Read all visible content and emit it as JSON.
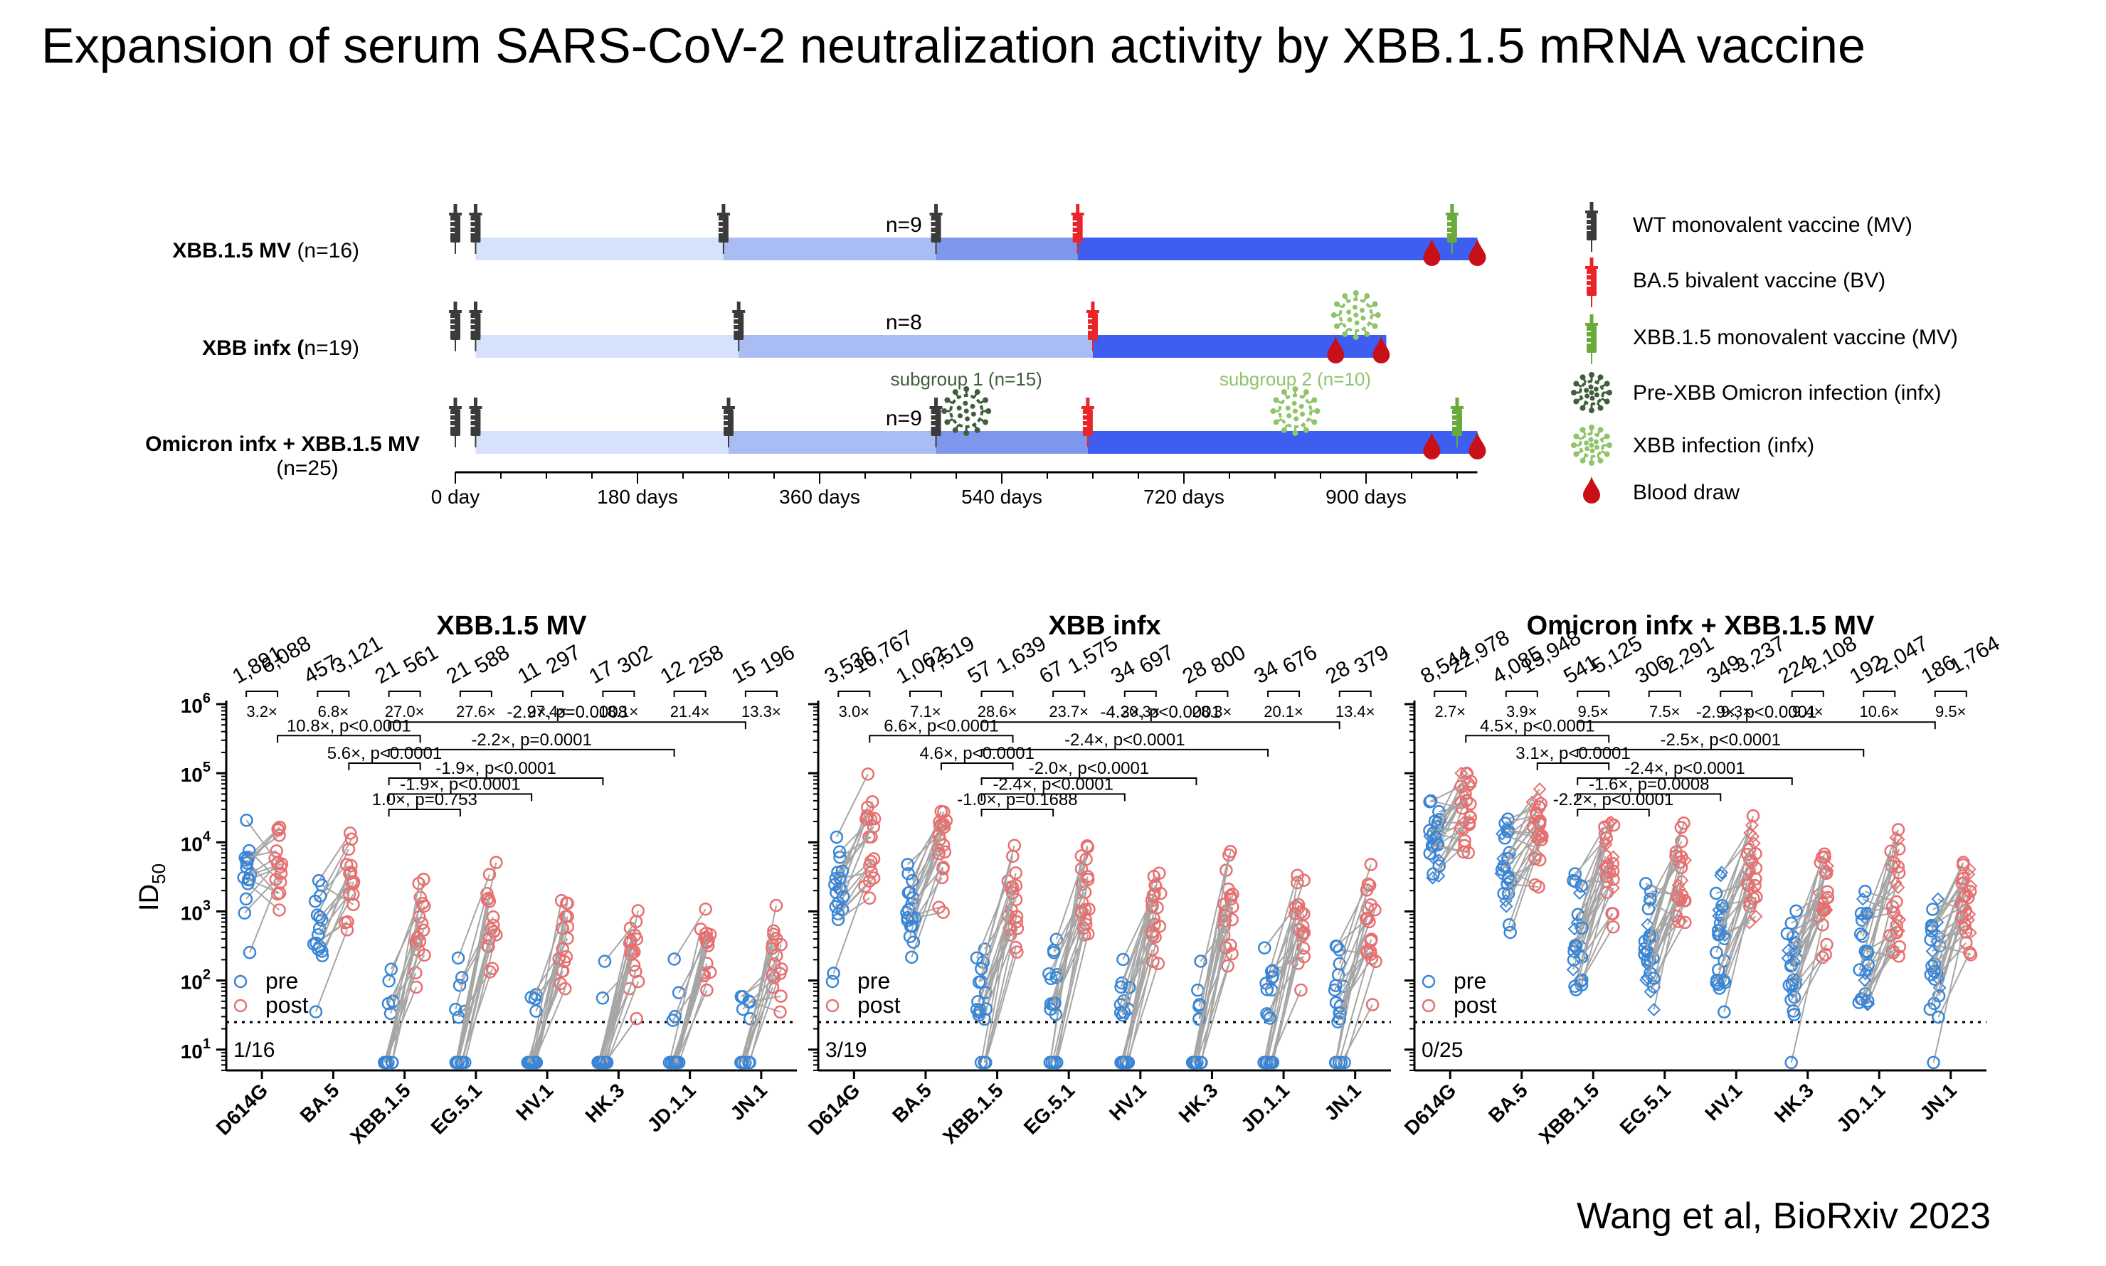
{
  "title": "Expansion of serum SARS-CoV-2 neutralization activity by XBB.1.5 mRNA vaccine",
  "citation": "Wang et al, BioRxiv 2023",
  "colors": {
    "pre": "#3a86d6",
    "post": "#e86f6f",
    "wt_vaccine": "#3b3b3b",
    "bv_vaccine": "#e8262a",
    "xbb_vaccine": "#6aaa3c",
    "pre_xbb_infx": "#3f5f3a",
    "xbb_infx": "#8fc46a",
    "blood": "#c8101a"
  },
  "timeline": {
    "axis_ticks": [
      "0 day",
      "180 days",
      "360 days",
      "540 days",
      "720 days",
      "900 days"
    ],
    "axis_days": [
      0,
      180,
      360,
      540,
      720,
      900
    ],
    "cohorts": [
      {
        "name": "XBB.1.5 MV",
        "n": "(n=16)",
        "vaccines": [
          {
            "day": 0,
            "type": "wt"
          },
          {
            "day": 20,
            "type": "wt"
          },
          {
            "day": 265,
            "type": "wt"
          },
          {
            "day": 475,
            "type": "wt"
          },
          {
            "day": 615,
            "type": "bv"
          },
          {
            "day": 985,
            "type": "xbb"
          }
        ],
        "n_label": "n=9",
        "n_label_day": 440,
        "blood_days": [
          965,
          1010
        ],
        "end_day": 1010
      },
      {
        "name": "XBB infx (",
        "n": "n=19)",
        "vaccines": [
          {
            "day": 0,
            "type": "wt"
          },
          {
            "day": 20,
            "type": "wt"
          },
          {
            "day": 280,
            "type": "wt"
          },
          {
            "day": 630,
            "type": "bv"
          }
        ],
        "n_label": "n=8",
        "n_label_day": 440,
        "infections": [
          {
            "day": 890,
            "type": "xbb"
          }
        ],
        "blood_days": [
          870,
          915
        ],
        "end_day": 920
      },
      {
        "name": "Omicron infx + XBB.1.5 MV",
        "n": "(n=25)",
        "vaccines": [
          {
            "day": 0,
            "type": "wt"
          },
          {
            "day": 20,
            "type": "wt"
          },
          {
            "day": 270,
            "type": "wt"
          },
          {
            "day": 475,
            "type": "wt"
          },
          {
            "day": 625,
            "type": "bv"
          },
          {
            "day": 990,
            "type": "xbb"
          }
        ],
        "n_label": "n=9",
        "n_label_day": 440,
        "infections": [
          {
            "day": 505,
            "type": "pre"
          },
          {
            "day": 830,
            "type": "xbb"
          }
        ],
        "subgroups": [
          {
            "label": "subgroup 1 (n=15)",
            "day": 505,
            "type": "pre"
          },
          {
            "label": "subgroup 2 (n=10)",
            "day": 830,
            "type": "xbb"
          }
        ],
        "blood_days": [
          965,
          1010
        ],
        "end_day": 1010
      }
    ],
    "legend": [
      {
        "icon": "wt",
        "label": "WT monovalent vaccine (MV)"
      },
      {
        "icon": "bv",
        "label": "BA.5 bivalent vaccine (BV)"
      },
      {
        "icon": "xbb",
        "label": "XBB.1.5 monovalent vaccine (MV)"
      },
      {
        "icon": "pre",
        "label": "Pre-XBB Omicron infection (infx)"
      },
      {
        "icon": "xbbinfx",
        "label": "XBB infection (infx)"
      },
      {
        "icon": "blood",
        "label": "Blood draw"
      }
    ]
  },
  "chart_data": [
    {
      "type": "scatter",
      "title": "XBB.1.5 MV",
      "ylabel": "ID50",
      "yscale": "log",
      "ylim": [
        5,
        1000000
      ],
      "yticks": [
        "10",
        "10",
        "10",
        "10",
        "10",
        "10"
      ],
      "ytick_exp": [
        "1",
        "2",
        "3",
        "4",
        "5",
        "6"
      ],
      "categories": [
        "D614G",
        "BA.5",
        "XBB.1.5",
        "EG.5.1",
        "HV.1",
        "HK.3",
        "JD.1.1",
        "JN.1"
      ],
      "series": [
        {
          "name": "pre"
        },
        {
          "name": "post"
        }
      ],
      "gmt_pre": [
        "1,891",
        "457",
        "21",
        "21",
        "11",
        "17",
        "12",
        "15"
      ],
      "gmt_post": [
        "6,088",
        "3,121",
        "561",
        "588",
        "297",
        "302",
        "258",
        "196"
      ],
      "pre_values": [
        1891,
        457,
        21,
        21,
        11,
        17,
        12,
        15
      ],
      "post_values": [
        6088,
        3121,
        561,
        588,
        297,
        302,
        258,
        196
      ],
      "fold": [
        "3.2×",
        "6.8×",
        "27.0×",
        "27.6×",
        "27.4×",
        "18.1×",
        "21.4×",
        "13.3×"
      ],
      "comparisons": [
        {
          "label": "-2.9×, p=0.0008",
          "from": 2,
          "to": 7,
          "y": 550000
        },
        {
          "label": "10.8×, p<0.0001",
          "from": 0,
          "to": 2,
          "y": 350000
        },
        {
          "label": "-2.2×, p=0.0001",
          "from": 2,
          "to": 6,
          "y": 220000
        },
        {
          "label": "5.6×, p<0.0001",
          "from": 1,
          "to": 2,
          "y": 140000
        },
        {
          "label": "-1.9×, p<0.0001",
          "from": 2,
          "to": 5,
          "y": 85000
        },
        {
          "label": "-1.9×, p<0.0001",
          "from": 2,
          "to": 4,
          "y": 50000
        },
        {
          "label": "1.0×, p=0.753",
          "from": 2,
          "to": 3,
          "y": 30000
        }
      ],
      "lod": 25,
      "fraction": "1/16",
      "legend": [
        "pre",
        "post"
      ]
    },
    {
      "type": "scatter",
      "title": "XBB infx",
      "yscale": "log",
      "ylim": [
        5,
        1000000
      ],
      "categories": [
        "D614G",
        "BA.5",
        "XBB.1.5",
        "EG.5.1",
        "HV.1",
        "HK.3",
        "JD.1.1",
        "JN.1"
      ],
      "series": [
        {
          "name": "pre"
        },
        {
          "name": "post"
        }
      ],
      "gmt_pre": [
        "3,536",
        "1,062",
        "57",
        "67",
        "34",
        "28",
        "34",
        "28"
      ],
      "gmt_post": [
        "10,767",
        "7,519",
        "1,639",
        "1,575",
        "697",
        "800",
        "676",
        "379"
      ],
      "pre_values": [
        3536,
        1062,
        57,
        67,
        34,
        28,
        34,
        28
      ],
      "post_values": [
        10767,
        7519,
        1639,
        1575,
        697,
        800,
        676,
        379
      ],
      "fold": [
        "3.0×",
        "7.1×",
        "28.6×",
        "23.7×",
        "20.3×",
        "28.3×",
        "20.1×",
        "13.4×"
      ],
      "comparisons": [
        {
          "label": "-4.3×, p<0.0001",
          "from": 2,
          "to": 7,
          "y": 550000
        },
        {
          "label": "6.6×, p<0.0001",
          "from": 0,
          "to": 2,
          "y": 350000
        },
        {
          "label": "-2.4×, p<0.0001",
          "from": 2,
          "to": 6,
          "y": 220000
        },
        {
          "label": "4.6×, p<0.0001",
          "from": 1,
          "to": 2,
          "y": 140000
        },
        {
          "label": "-2.0×, p<0.0001",
          "from": 2,
          "to": 5,
          "y": 85000
        },
        {
          "label": "-2.4×, p<0.0001",
          "from": 2,
          "to": 4,
          "y": 50000
        },
        {
          "label": "-1.0×, p=0.1688",
          "from": 2,
          "to": 3,
          "y": 30000
        }
      ],
      "lod": 25,
      "fraction": "3/19",
      "legend": [
        "pre",
        "post"
      ]
    },
    {
      "type": "scatter",
      "title": "Omicron infx + XBB.1.5 MV",
      "yscale": "log",
      "ylim": [
        5,
        1000000
      ],
      "categories": [
        "D614G",
        "BA.5",
        "XBB.1.5",
        "EG.5.1",
        "HV.1",
        "HK.3",
        "JD.1.1",
        "JN.1"
      ],
      "series": [
        {
          "name": "pre"
        },
        {
          "name": "post"
        }
      ],
      "gmt_pre": [
        "8,544",
        "4,085",
        "541",
        "306",
        "349",
        "224",
        "192",
        "186"
      ],
      "gmt_post": [
        "22,978",
        "15,948",
        "5,125",
        "2,291",
        "3,237",
        "2,108",
        "2,047",
        "1,764"
      ],
      "pre_values": [
        8544,
        4085,
        541,
        306,
        349,
        224,
        192,
        186
      ],
      "post_values": [
        22978,
        15948,
        5125,
        2291,
        3237,
        2108,
        2047,
        1764
      ],
      "fold": [
        "2.7×",
        "3.9×",
        "9.5×",
        "7.5×",
        "9.3×",
        "9.4×",
        "10.6×",
        "9.5×"
      ],
      "comparisons": [
        {
          "label": "-2.9×, p<0.0001",
          "from": 2,
          "to": 7,
          "y": 550000
        },
        {
          "label": "4.5×, p<0.0001",
          "from": 0,
          "to": 2,
          "y": 350000
        },
        {
          "label": "-2.5×, p<0.0001",
          "from": 2,
          "to": 6,
          "y": 220000
        },
        {
          "label": "3.1×, p<0.0001",
          "from": 1,
          "to": 2,
          "y": 140000
        },
        {
          "label": "-2.4×, p<0.0001",
          "from": 2,
          "to": 5,
          "y": 85000
        },
        {
          "label": "-1.6×, p=0.0008",
          "from": 2,
          "to": 4,
          "y": 50000
        },
        {
          "label": "-2.2×, p<0.0001",
          "from": 2,
          "to": 3,
          "y": 30000
        }
      ],
      "lod": 25,
      "fraction": "0/25",
      "legend": [
        "pre",
        "post"
      ]
    }
  ]
}
